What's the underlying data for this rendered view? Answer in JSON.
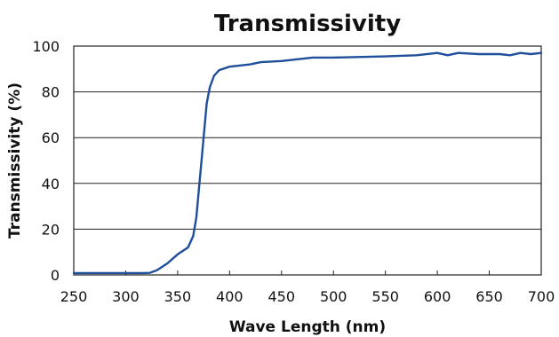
{
  "chart_data": {
    "type": "line",
    "title": "Transmissivity",
    "xlabel": "Wave Length (nm)",
    "ylabel": "Transmissivity (%)",
    "xlim": [
      250,
      700
    ],
    "ylim": [
      0,
      100
    ],
    "x_ticks": [
      250,
      300,
      350,
      400,
      450,
      500,
      550,
      600,
      650,
      700
    ],
    "y_ticks": [
      0,
      20,
      40,
      60,
      80,
      100
    ],
    "x_tick_labels": [
      "250",
      "300",
      "350",
      "400",
      "450",
      "500",
      "550",
      "600",
      "650",
      "700"
    ],
    "y_tick_labels": [
      "0",
      "20",
      "40",
      "60",
      "80",
      "100"
    ],
    "grid": "horizontal",
    "line_color": "#1f4e9a",
    "series": [
      {
        "x": [
          250,
          300,
          315,
          323,
          330,
          340,
          350,
          360,
          365,
          368,
          372,
          375,
          378,
          381,
          385,
          390,
          400,
          420,
          430,
          450,
          480,
          500,
          550,
          580,
          600,
          610,
          620,
          640,
          660,
          670,
          680,
          690,
          700
        ],
        "y": [
          0.8,
          0.8,
          0.8,
          0.9,
          2,
          5,
          9,
          12,
          17,
          25,
          45,
          60,
          75,
          82,
          87,
          89.5,
          91,
          92,
          93,
          93.5,
          95,
          95,
          95.5,
          96,
          97,
          96,
          97,
          96.5,
          96.5,
          96,
          97,
          96.5,
          97
        ]
      }
    ]
  }
}
